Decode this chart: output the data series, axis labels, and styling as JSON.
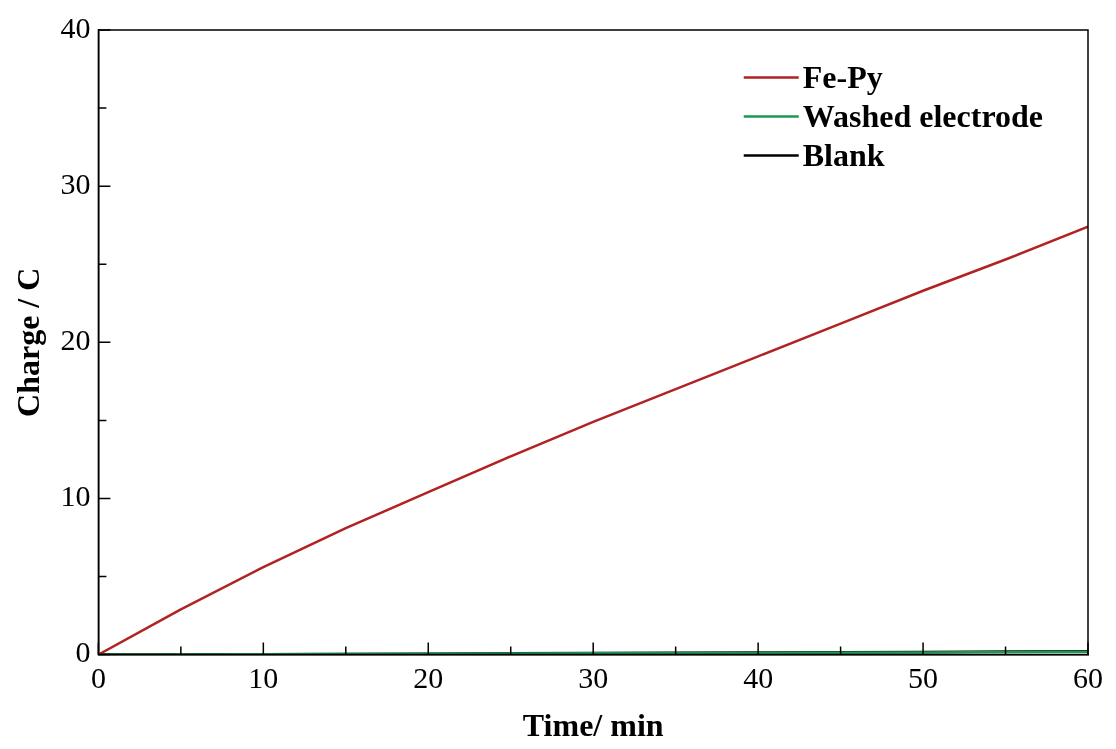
{
  "chart_data": {
    "type": "line",
    "xlabel": "Time/ min",
    "ylabel": "Charge / C",
    "legend": "top right",
    "grid": false,
    "marker": "none",
    "line_style": "solid",
    "xlim": [
      0,
      60
    ],
    "ylim": [
      0,
      40
    ],
    "xticks": [
      0,
      {
        "value": 5,
        "label": null
      },
      10,
      {
        "value": 15,
        "label": null
      },
      20,
      {
        "value": 25,
        "label": null
      },
      30,
      {
        "value": 35,
        "label": null
      },
      40,
      {
        "value": 45,
        "label": null
      },
      50,
      {
        "value": 55,
        "label": null
      },
      60
    ],
    "yticks": [
      0,
      {
        "value": 5,
        "label": null
      },
      10,
      {
        "value": 15,
        "label": null
      },
      20,
      {
        "value": 25,
        "label": null
      },
      30,
      {
        "value": 35,
        "label": null
      },
      40
    ],
    "series": [
      {
        "name": "Fe-Py",
        "color": "#b22222",
        "x": [
          0,
          5,
          10,
          15,
          20,
          25,
          30,
          35,
          40,
          45,
          50,
          55,
          60
        ],
        "values": [
          0,
          2.9,
          5.6,
          8.1,
          10.4,
          12.7,
          14.9,
          17.0,
          19.1,
          21.2,
          23.3,
          25.3,
          27.4
        ]
      },
      {
        "name": "Washed electrode",
        "color": "#1a9850",
        "x": [
          0,
          10,
          20,
          30,
          40,
          50,
          60
        ],
        "values": [
          0,
          0.02,
          0.05,
          0.08,
          0.11,
          0.14,
          0.18
        ]
      },
      {
        "name": "Blank",
        "color": "#000000",
        "x": [
          0,
          10,
          20,
          30,
          40,
          50,
          60
        ],
        "values": [
          0,
          0.02,
          0.06,
          0.1,
          0.13,
          0.17,
          0.22
        ]
      }
    ]
  }
}
